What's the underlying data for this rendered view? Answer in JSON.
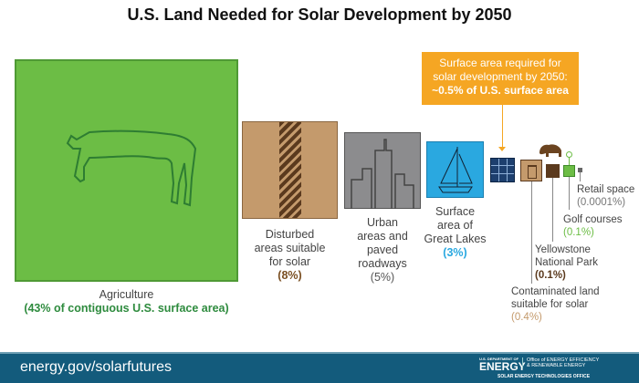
{
  "title": "U.S. Land Needed for Solar Development by 2050",
  "callout": {
    "line1": "Surface area required for",
    "line2": "solar development by 2050:",
    "line3": "~0.5% of U.S. surface area"
  },
  "items": [
    {
      "name": "Agriculture",
      "pct": "(43% of contiguous U.S. surface area)",
      "color": "#6cbd45"
    },
    {
      "name1": "Disturbed",
      "name2": "areas suitable",
      "name3": "for solar",
      "pct": "(8%)",
      "color": "#c49a6c"
    },
    {
      "name1": "Urban",
      "name2": "areas and",
      "name3": "paved",
      "name4": "roadways",
      "pct": "(5%)",
      "color": "#8c8c8e"
    },
    {
      "name1": "Surface",
      "name2": "area of",
      "name3": "Great Lakes",
      "pct": "(3%)",
      "color": "#2aa8e0"
    },
    {
      "name1": "Contaminated land",
      "name2": "suitable for solar",
      "pct": "(0.4%)",
      "color": "#c49a6c"
    },
    {
      "name1": "Yellowstone",
      "name2": "National Park",
      "pct": "(0.1%)",
      "color": "#5b3a1e"
    },
    {
      "name": "Golf courses",
      "pct": "(0.1%)",
      "color": "#6cbd45"
    },
    {
      "name": "Retail space",
      "pct": "(0.0001%)",
      "color": "#666666"
    }
  ],
  "footer": {
    "url": "energy.gov/solarfutures",
    "logo_dept": "U.S. DEPARTMENT OF",
    "logo_energy": "ENERGY",
    "office1": "Office of ENERGY EFFICIENCY",
    "office2": "& RENEWABLE ENERGY",
    "office3": "SOLAR ENERGY TECHNOLOGIES OFFICE"
  },
  "colors": {
    "callout": "#f5a623",
    "footer": "#135b7c",
    "solar": "#1d3f6e"
  }
}
